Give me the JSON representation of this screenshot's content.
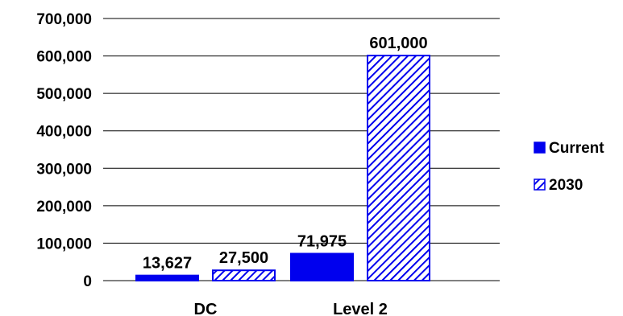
{
  "chart_data": {
    "type": "bar",
    "categories": [
      "DC",
      "Level 2"
    ],
    "series": [
      {
        "name": "Current",
        "values": [
          13627,
          71975
        ],
        "color": "#0000ee",
        "fill": "solid"
      },
      {
        "name": "2030",
        "values": [
          27500,
          601000
        ],
        "color": "#0000ee",
        "fill": "hatched"
      }
    ],
    "data_labels": [
      [
        "13,627",
        "71,975"
      ],
      [
        "27,500",
        "601,000"
      ]
    ],
    "y_ticks": [
      {
        "value": 0,
        "label": "0"
      },
      {
        "value": 100000,
        "label": "100,000"
      },
      {
        "value": 200000,
        "label": "200,000"
      },
      {
        "value": 300000,
        "label": "300,000"
      },
      {
        "value": 400000,
        "label": "400,000"
      },
      {
        "value": 500000,
        "label": "500,000"
      },
      {
        "value": 600000,
        "label": "600,000"
      },
      {
        "value": 700000,
        "label": "700,000"
      }
    ],
    "ylim": [
      0,
      700000
    ],
    "grid": true,
    "legend_position": "right",
    "title": "",
    "xlabel": "",
    "ylabel": ""
  }
}
